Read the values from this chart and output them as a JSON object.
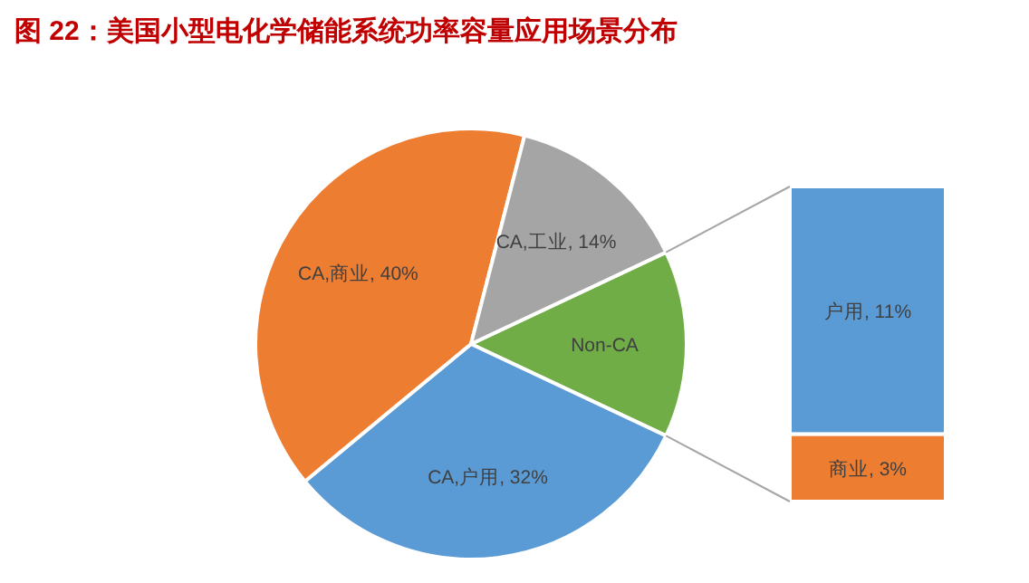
{
  "chart_data": [
    {
      "type": "pie",
      "title": "图 22：美国小型电化学储能系统功率容量应用场景分布",
      "categories": [
        "Non-CA",
        "CA,户用, 32%",
        "CA,商业, 40%",
        "CA,工业, 14%"
      ],
      "values": [
        14,
        32,
        40,
        14
      ],
      "colors": [
        "#70ad47",
        "#5b9bd5",
        "#ed7d31",
        "#a5a5a5"
      ]
    },
    {
      "type": "bar",
      "stacked": true,
      "categories": [
        null
      ],
      "series": [
        {
          "color": "#ed7d31",
          "values": [
            3
          ],
          "value_labels": [
            "商业, 3%"
          ]
        },
        {
          "color": "#5b9bd5",
          "values": [
            11
          ],
          "value_labels": [
            "户用, 11%"
          ]
        }
      ]
    }
  ]
}
